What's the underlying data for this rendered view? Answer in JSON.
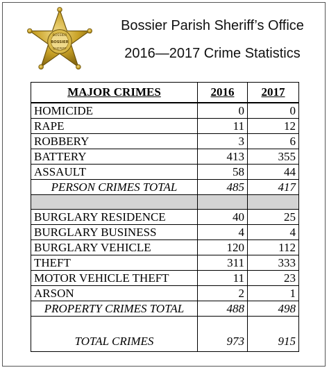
{
  "badge": {
    "top_text": "BOSSIER",
    "center_text": "BOSSIER",
    "bottom_text": "SHERIFF"
  },
  "header": {
    "title": "Bossier Parish Sheriff’s Office",
    "subtitle": "2016—2017 Crime Statistics"
  },
  "table": {
    "headers": [
      "MAJOR CRIMES",
      "2016",
      "2017"
    ],
    "person_rows": [
      {
        "name": "HOMICIDE",
        "y2016": "0",
        "y2017": "0"
      },
      {
        "name": "RAPE",
        "y2016": "11",
        "y2017": "12"
      },
      {
        "name": "ROBBERY",
        "y2016": "3",
        "y2017": "6"
      },
      {
        "name": "BATTERY",
        "y2016": "413",
        "y2017": "355"
      },
      {
        "name": "ASSAULT",
        "y2016": "58",
        "y2017": "44"
      }
    ],
    "person_total": {
      "name": "PERSON CRIMES TOTAL",
      "y2016": "485",
      "y2017": "417"
    },
    "property_rows": [
      {
        "name": "BURGLARY RESIDENCE",
        "y2016": "40",
        "y2017": "25"
      },
      {
        "name": "BURGLARY BUSINESS",
        "y2016": "4",
        "y2017": "4"
      },
      {
        "name": "BURGLARY VEHICLE",
        "y2016": "120",
        "y2017": "112"
      },
      {
        "name": "THEFT",
        "y2016": "311",
        "y2017": "333"
      },
      {
        "name": "MOTOR VEHICLE THEFT",
        "y2016": "11",
        "y2017": "23"
      },
      {
        "name": "ARSON",
        "y2016": "2",
        "y2017": "1"
      }
    ],
    "property_total": {
      "name": "PROPERTY CRIMES TOTAL",
      "y2016": "488",
      "y2017": "498"
    },
    "grand_total": {
      "name": "TOTAL CRIMES",
      "y2016": "973",
      "y2017": "915"
    }
  },
  "colors": {
    "badge_gold": "#c9a227",
    "badge_shadow": "#8a6b12",
    "spacer_gray": "#d3d3d3"
  }
}
